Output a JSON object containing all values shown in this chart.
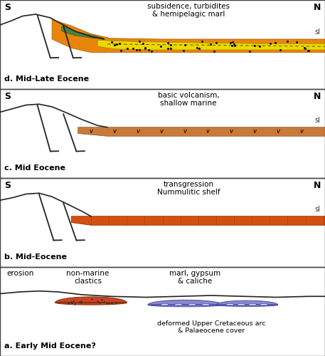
{
  "panels": {
    "d": {
      "label": "d. Mid-Late Eocene",
      "title": "subsidence, turbidites\n& hemipelagic marl",
      "orange_color": "#E8850A",
      "yellow_color": "#EED800",
      "green_color": "#4A8040",
      "dot_color": "#111111"
    },
    "c": {
      "label": "c. Mid Eocene",
      "title": "basic volcanism,\nshallow marine",
      "volc_color": "#C87A3A"
    },
    "b": {
      "label": "b. Mid-Eocene",
      "title": "transgression\nNummulitic shelf",
      "shelf_color": "#D45010"
    },
    "a": {
      "label": "a. Early Mid Eocene?",
      "erosion_label": "erosion",
      "nonmarine_label": "non-marine\nclastics",
      "marl_label": "marl, gypsum\n& caliche",
      "deformed_label": "deformed Upper Cretaceous arc\n& Palaeocene cover",
      "nonmarine_color": "#C84420",
      "purple_color": "#8888C8"
    }
  },
  "bg_color": "#FFFFFF",
  "border_color": "#444444",
  "line_color": "#222222"
}
